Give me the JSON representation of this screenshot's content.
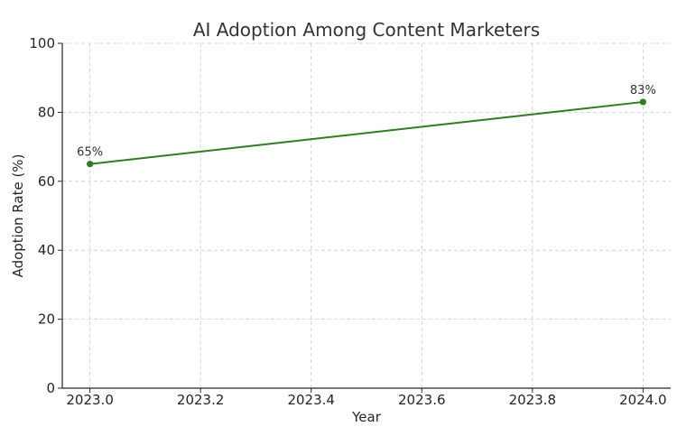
{
  "chart_data": {
    "type": "line",
    "title": "AI Adoption Among Content Marketers",
    "xlabel": "Year",
    "ylabel": "Adoption Rate (%)",
    "xlim": [
      2022.95,
      2024.05
    ],
    "ylim": [
      0,
      100
    ],
    "x_ticks": [
      "2023.0",
      "2023.2",
      "2023.4",
      "2023.6",
      "2023.8",
      "2024.0"
    ],
    "x_tick_values": [
      2023.0,
      2023.2,
      2023.4,
      2023.6,
      2023.8,
      2024.0
    ],
    "y_ticks": [
      "0",
      "20",
      "40",
      "60",
      "80",
      "100"
    ],
    "y_tick_values": [
      0,
      20,
      40,
      60,
      80,
      100
    ],
    "grid": true,
    "series": [
      {
        "color": "#2e7d1f",
        "x": [
          2023.0,
          2024.0
        ],
        "values": [
          65,
          83
        ],
        "data_labels": [
          "65%",
          "83%"
        ]
      }
    ]
  }
}
